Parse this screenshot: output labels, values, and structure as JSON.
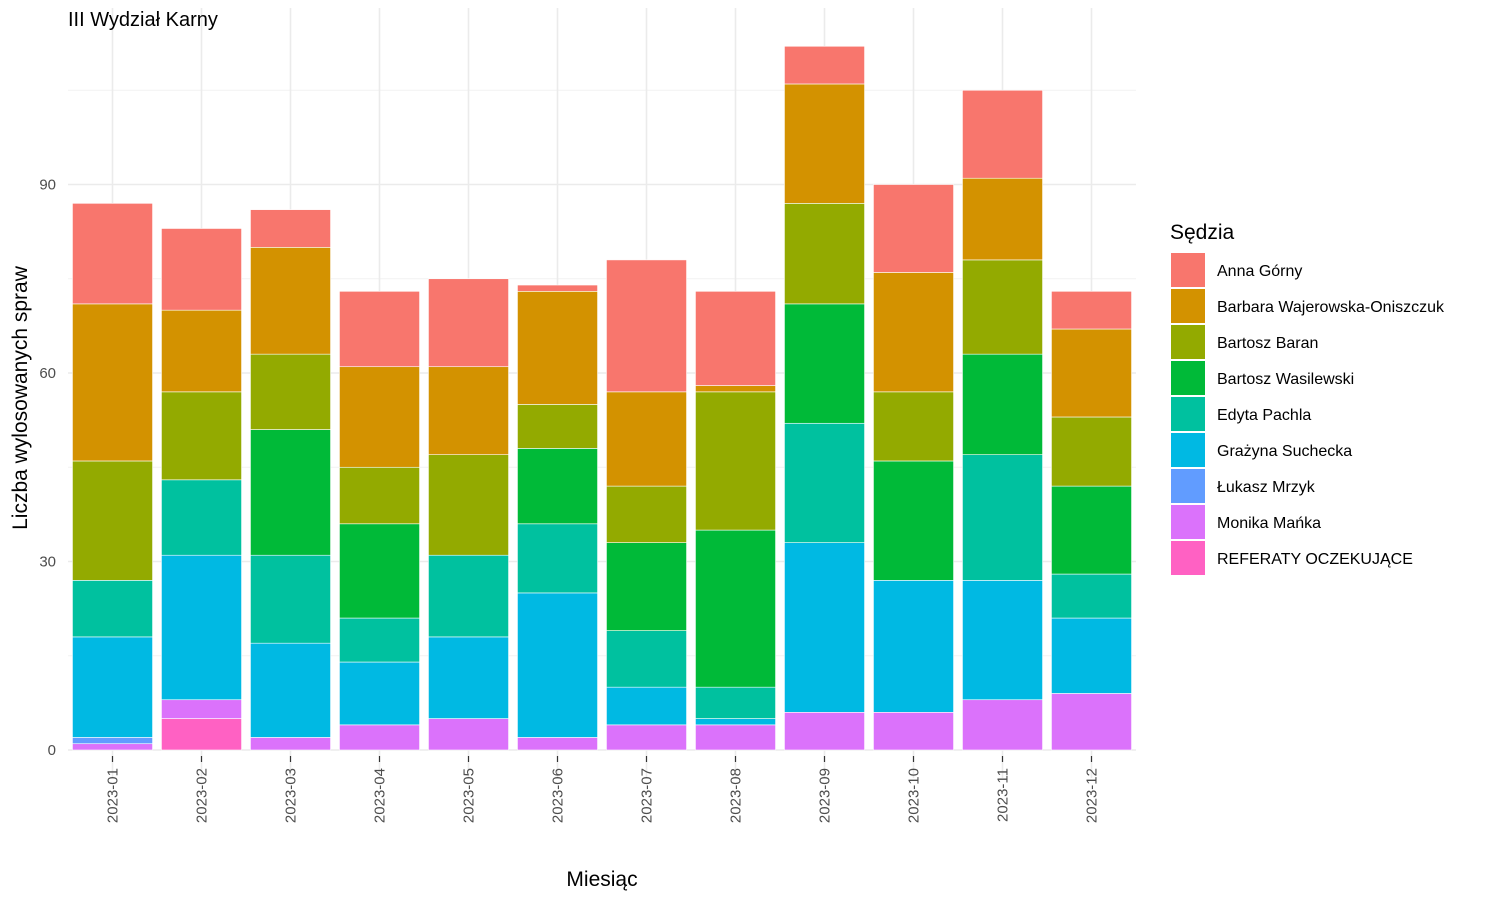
{
  "chart_data": {
    "type": "bar",
    "stacked": true,
    "title": "III Wydział Karny",
    "xlabel": "Miesiąc",
    "ylabel": "Liczba wylosowanych spraw",
    "ylim": [
      0,
      120
    ],
    "yticks": [
      0,
      30,
      60,
      90
    ],
    "grid": true,
    "legend_title": "Sędzia",
    "legend_position": "right",
    "categories": [
      "2023-01",
      "2023-02",
      "2023-03",
      "2023-04",
      "2023-05",
      "2023-06",
      "2023-07",
      "2023-08",
      "2023-09",
      "2023-10",
      "2023-11",
      "2023-12"
    ],
    "series": [
      {
        "name": "REFERATY OCZEKUJĄCE",
        "color": "#FF61C3",
        "values": [
          0,
          5,
          0,
          0,
          0,
          0,
          0,
          0,
          0,
          0,
          0,
          0
        ]
      },
      {
        "name": "Monika Mańka",
        "color": "#DB72FB",
        "values": [
          1,
          3,
          2,
          4,
          5,
          2,
          4,
          4,
          6,
          6,
          8,
          9
        ]
      },
      {
        "name": "Łukasz Mrzyk",
        "color": "#619CFF",
        "values": [
          1,
          0,
          0,
          0,
          0,
          0,
          0,
          0,
          0,
          0,
          0,
          0
        ]
      },
      {
        "name": "Grażyna Suchecka",
        "color": "#00B9E3",
        "values": [
          16,
          23,
          15,
          10,
          13,
          23,
          6,
          1,
          27,
          21,
          19,
          12
        ]
      },
      {
        "name": "Edyta Pachla",
        "color": "#00C19F",
        "values": [
          9,
          12,
          14,
          7,
          13,
          11,
          9,
          5,
          19,
          0,
          20,
          7
        ]
      },
      {
        "name": "Bartosz Wasilewski",
        "color": "#00BA38",
        "values": [
          0,
          0,
          20,
          15,
          0,
          12,
          14,
          25,
          19,
          19,
          16,
          14
        ]
      },
      {
        "name": "Bartosz Baran",
        "color": "#93AA00",
        "values": [
          19,
          14,
          12,
          9,
          16,
          7,
          9,
          22,
          16,
          11,
          15,
          11
        ]
      },
      {
        "name": "Barbara Wajerowska-Oniszczuk",
        "color": "#D39200",
        "values": [
          25,
          13,
          17,
          16,
          14,
          18,
          15,
          1,
          19,
          19,
          13,
          14
        ]
      },
      {
        "name": "Anna Górny",
        "color": "#F8766D",
        "values": [
          16,
          13,
          6,
          12,
          14,
          1,
          21,
          15,
          6,
          14,
          14,
          6
        ]
      }
    ],
    "legend_order": [
      "Anna Górny",
      "Barbara Wajerowska-Oniszczuk",
      "Bartosz Baran",
      "Bartosz Wasilewski",
      "Edyta Pachla",
      "Grażyna Suchecka",
      "Łukasz Mrzyk",
      "Monika Mańka",
      "REFERATY OCZEKUJĄCE"
    ]
  }
}
